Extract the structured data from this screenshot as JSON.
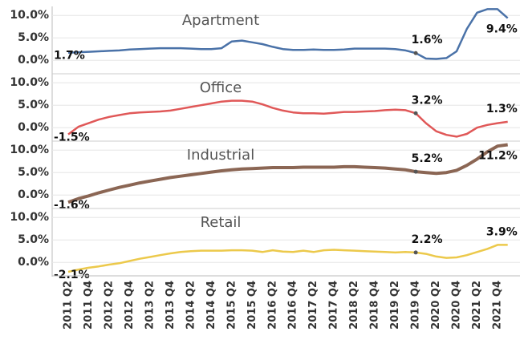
{
  "chart_data": {
    "type": "line",
    "categories": [
      "2011 Q2",
      null,
      "2011 Q4",
      null,
      "2012 Q2",
      null,
      "2012 Q4",
      null,
      "2013 Q2",
      null,
      "2013 Q4",
      null,
      "2014 Q2",
      null,
      "2014 Q4",
      null,
      "2015 Q2",
      null,
      "2015 Q4",
      null,
      "2016 Q2",
      null,
      "2016 Q4",
      null,
      "2017 Q2",
      null,
      "2017 Q4",
      null,
      "2018 Q2",
      null,
      "2018 Q4",
      null,
      "2019 Q2",
      null,
      "2019 Q4",
      null,
      "2020 Q2",
      null,
      "2020 Q4",
      null,
      "2021 Q2",
      null,
      "2021 Q4",
      null
    ],
    "ylim": [
      -3,
      12
    ],
    "yticks": [
      {
        "value": 0,
        "label": "0.0%"
      },
      {
        "value": 5,
        "label": "5.0%"
      },
      {
        "value": 10,
        "label": "10.0%"
      }
    ],
    "grid": true,
    "series": [
      {
        "name": "Apartment",
        "color": "#4a72a8",
        "values": [
          1.7,
          1.8,
          1.9,
          2.0,
          2.1,
          2.2,
          2.4,
          2.5,
          2.6,
          2.7,
          2.7,
          2.7,
          2.6,
          2.5,
          2.5,
          2.7,
          4.2,
          4.4,
          4.0,
          3.6,
          3.0,
          2.5,
          2.3,
          2.3,
          2.4,
          2.3,
          2.3,
          2.4,
          2.6,
          2.6,
          2.6,
          2.6,
          2.5,
          2.2,
          1.6,
          0.4,
          0.3,
          0.5,
          2.0,
          7.0,
          10.6,
          11.4,
          11.4,
          9.4
        ],
        "value_labels": [
          "1.7%",
          null,
          null,
          null,
          null,
          null,
          null,
          null,
          null,
          null,
          null,
          null,
          null,
          null,
          null,
          null,
          null,
          null,
          null,
          null,
          null,
          null,
          null,
          null,
          null,
          null,
          null,
          null,
          null,
          null,
          null,
          null,
          null,
          null,
          "1.6%",
          null,
          null,
          null,
          null,
          null,
          null,
          null,
          null,
          "9.4%"
        ]
      },
      {
        "name": "Office",
        "color": "#e05858",
        "values": [
          -1.5,
          0.2,
          1.0,
          1.8,
          2.4,
          2.8,
          3.2,
          3.4,
          3.5,
          3.6,
          3.8,
          4.2,
          4.6,
          5.0,
          5.4,
          5.8,
          6.0,
          6.0,
          5.8,
          5.2,
          4.4,
          3.8,
          3.4,
          3.2,
          3.2,
          3.1,
          3.3,
          3.5,
          3.5,
          3.6,
          3.7,
          3.9,
          4.0,
          3.9,
          3.2,
          1.0,
          -0.8,
          -1.6,
          -2.0,
          -1.4,
          0.0,
          0.6,
          1.0,
          1.3
        ],
        "value_labels": [
          "-1.5%",
          null,
          null,
          null,
          null,
          null,
          null,
          null,
          null,
          null,
          null,
          null,
          null,
          null,
          null,
          null,
          null,
          null,
          null,
          null,
          null,
          null,
          null,
          null,
          null,
          null,
          null,
          null,
          null,
          null,
          null,
          null,
          null,
          null,
          "3.2%",
          null,
          null,
          null,
          null,
          null,
          null,
          null,
          null,
          "1.3%"
        ]
      },
      {
        "name": "Industrial",
        "color": "#8b6654",
        "values": [
          -1.6,
          -0.8,
          -0.2,
          0.5,
          1.1,
          1.7,
          2.2,
          2.7,
          3.1,
          3.5,
          3.9,
          4.2,
          4.5,
          4.8,
          5.1,
          5.4,
          5.6,
          5.8,
          5.9,
          6.0,
          6.1,
          6.1,
          6.1,
          6.2,
          6.2,
          6.2,
          6.2,
          6.3,
          6.3,
          6.2,
          6.1,
          6.0,
          5.8,
          5.6,
          5.2,
          5.0,
          4.8,
          5.0,
          5.5,
          6.6,
          8.0,
          9.6,
          10.9,
          11.2
        ],
        "value_labels": [
          "-1.6%",
          null,
          null,
          null,
          null,
          null,
          null,
          null,
          null,
          null,
          null,
          null,
          null,
          null,
          null,
          null,
          null,
          null,
          null,
          null,
          null,
          null,
          null,
          null,
          null,
          null,
          null,
          null,
          null,
          null,
          null,
          null,
          null,
          null,
          "5.2%",
          null,
          null,
          null,
          null,
          null,
          null,
          null,
          null,
          "11.2%"
        ]
      },
      {
        "name": "Retail",
        "color": "#ecc94b",
        "values": [
          -2.1,
          -1.6,
          -1.2,
          -0.9,
          -0.5,
          -0.2,
          0.3,
          0.8,
          1.2,
          1.6,
          2.0,
          2.3,
          2.5,
          2.6,
          2.6,
          2.6,
          2.7,
          2.7,
          2.6,
          2.3,
          2.7,
          2.4,
          2.3,
          2.6,
          2.3,
          2.7,
          2.8,
          2.7,
          2.6,
          2.5,
          2.4,
          2.3,
          2.2,
          2.3,
          2.2,
          1.9,
          1.3,
          1.0,
          1.1,
          1.6,
          2.3,
          3.0,
          3.9,
          3.9
        ],
        "value_labels": [
          "-2.1%",
          null,
          null,
          null,
          null,
          null,
          null,
          null,
          null,
          null,
          null,
          null,
          null,
          null,
          null,
          null,
          null,
          null,
          null,
          null,
          null,
          null,
          null,
          null,
          null,
          null,
          null,
          null,
          null,
          null,
          null,
          null,
          null,
          null,
          "2.2%",
          null,
          null,
          null,
          null,
          null,
          null,
          null,
          null,
          "3.9%"
        ]
      }
    ]
  }
}
